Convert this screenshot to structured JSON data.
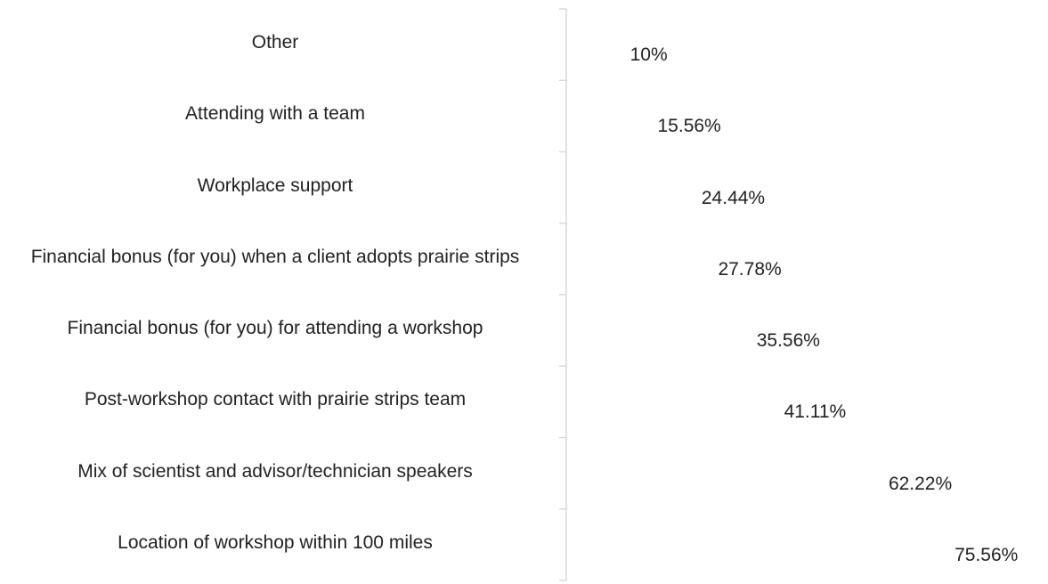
{
  "chart_data": {
    "type": "barh",
    "categories": [
      "Other",
      "Attending with a team",
      "Workplace support",
      "Financial bonus (for you) when a client adopts prairie strips",
      "Financial bonus (for you) for attending a workshop",
      "Post-workshop contact with prairie strips team",
      "Mix of scientist and advisor/technician speakers",
      "Location of workshop within 100 miles"
    ],
    "values": [
      10,
      15.56,
      24.44,
      27.78,
      35.56,
      41.11,
      62.22,
      75.56
    ],
    "value_labels": [
      "10%",
      "15.56%",
      "24.44%",
      "27.78%",
      "35.56%",
      "41.11%",
      "62.22%",
      "75.56%"
    ],
    "color": "#5b9bd5"
  }
}
